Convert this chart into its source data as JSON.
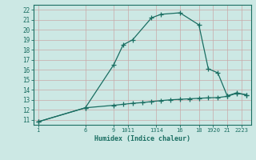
{
  "line1_x": [
    1,
    6,
    9,
    10,
    11,
    13,
    14,
    16,
    18,
    19,
    20,
    21,
    22,
    23
  ],
  "line1_y": [
    10.8,
    12.2,
    16.5,
    18.5,
    19.0,
    21.2,
    21.55,
    21.7,
    20.5,
    16.1,
    15.7,
    13.4,
    13.7,
    13.5
  ],
  "line2_x": [
    1,
    6,
    9,
    10,
    11,
    12,
    13,
    14,
    15,
    16,
    17,
    18,
    19,
    20,
    21,
    22,
    23
  ],
  "line2_y": [
    10.8,
    12.2,
    12.45,
    12.55,
    12.65,
    12.72,
    12.82,
    12.92,
    13.0,
    13.05,
    13.1,
    13.15,
    13.2,
    13.22,
    13.35,
    13.65,
    13.5
  ],
  "line_color": "#1a6e62",
  "bg_color": "#cce8e4",
  "grid_color": "#aad4ce",
  "xlabel": "Humidex (Indice chaleur)",
  "xlim": [
    0.5,
    23.5
  ],
  "ylim": [
    10.5,
    22.5
  ],
  "yticks": [
    11,
    12,
    13,
    14,
    15,
    16,
    17,
    18,
    19,
    20,
    21,
    22
  ],
  "xtick_positions": [
    1,
    6,
    9,
    10.5,
    13.5,
    16,
    18,
    19.5,
    21,
    22.5
  ],
  "xtick_labels": [
    "1",
    "6",
    "9",
    "1011",
    "1314",
    "16",
    "18",
    "1920",
    "21",
    "2223"
  ],
  "marker": "+",
  "markersize": 4,
  "linewidth": 0.9
}
